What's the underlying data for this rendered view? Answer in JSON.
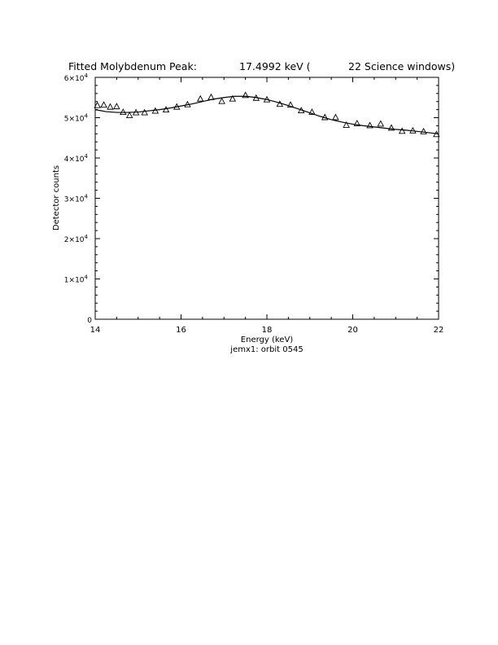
{
  "chart_data": {
    "type": "scatter",
    "title": {
      "prefix": "Fitted Molybdenum Peak:",
      "energy": "17.4992 keV (",
      "windows": "22 Science windows)"
    },
    "xlabel": "Energy (keV)",
    "ylabel": "Detector counts",
    "caption": "jemx1: orbit 0545",
    "xlim": [
      14,
      22
    ],
    "ylim": [
      0,
      60000
    ],
    "x_ticks": [
      {
        "value": 14,
        "label": "14"
      },
      {
        "value": 16,
        "label": "16"
      },
      {
        "value": 18,
        "label": "18"
      },
      {
        "value": 20,
        "label": "20"
      },
      {
        "value": 22,
        "label": "22"
      }
    ],
    "y_ticks": [
      {
        "value": 0,
        "mant": "0",
        "exp": ""
      },
      {
        "value": 10000,
        "mant": "1×10",
        "exp": "4"
      },
      {
        "value": 20000,
        "mant": "2×10",
        "exp": "4"
      },
      {
        "value": 30000,
        "mant": "3×10",
        "exp": "4"
      },
      {
        "value": 40000,
        "mant": "4×10",
        "exp": "4"
      },
      {
        "value": 50000,
        "mant": "5×10",
        "exp": "4"
      },
      {
        "value": 60000,
        "mant": "6×10",
        "exp": "4"
      }
    ],
    "series": [
      {
        "marker": "triangle",
        "x": [
          14.05,
          14.2,
          14.35,
          14.5,
          14.65,
          14.8,
          14.95,
          15.15,
          15.4,
          15.65,
          15.9,
          16.15,
          16.45,
          16.7,
          16.95,
          17.2,
          17.5,
          17.75,
          18.0,
          18.3,
          18.55,
          18.8,
          19.05,
          19.35,
          19.6,
          19.85,
          20.1,
          20.4,
          20.65,
          20.9,
          21.15,
          21.4,
          21.65,
          21.95
        ],
        "y": [
          53000,
          53100,
          52600,
          52700,
          51300,
          50500,
          51200,
          51200,
          51600,
          51900,
          52600,
          53200,
          54600,
          55000,
          54000,
          54600,
          55500,
          54800,
          54400,
          53300,
          53100,
          51700,
          51300,
          50000,
          50000,
          48100,
          48500,
          48000,
          48400,
          47400,
          46600,
          46700,
          46500,
          45800
        ]
      },
      {
        "style": "line",
        "x": [
          14.0,
          14.25,
          14.5,
          14.75,
          15.0,
          15.25,
          15.5,
          15.75,
          16.0,
          16.25,
          16.5,
          16.75,
          17.0,
          17.25,
          17.5,
          17.75,
          18.0,
          18.25,
          18.5,
          18.75,
          19.0,
          19.25,
          19.5,
          19.75,
          20.0,
          20.25,
          20.5,
          20.75,
          21.0,
          21.25,
          21.5,
          21.75,
          22.0
        ],
        "y": [
          52000,
          51500,
          51300,
          51300,
          51400,
          51700,
          52000,
          52400,
          52900,
          53400,
          54000,
          54600,
          55000,
          55300,
          55300,
          55000,
          54500,
          53800,
          53000,
          52100,
          51200,
          50300,
          49500,
          48900,
          48400,
          48000,
          47700,
          47400,
          47100,
          46900,
          46600,
          46300,
          46000
        ]
      }
    ]
  }
}
